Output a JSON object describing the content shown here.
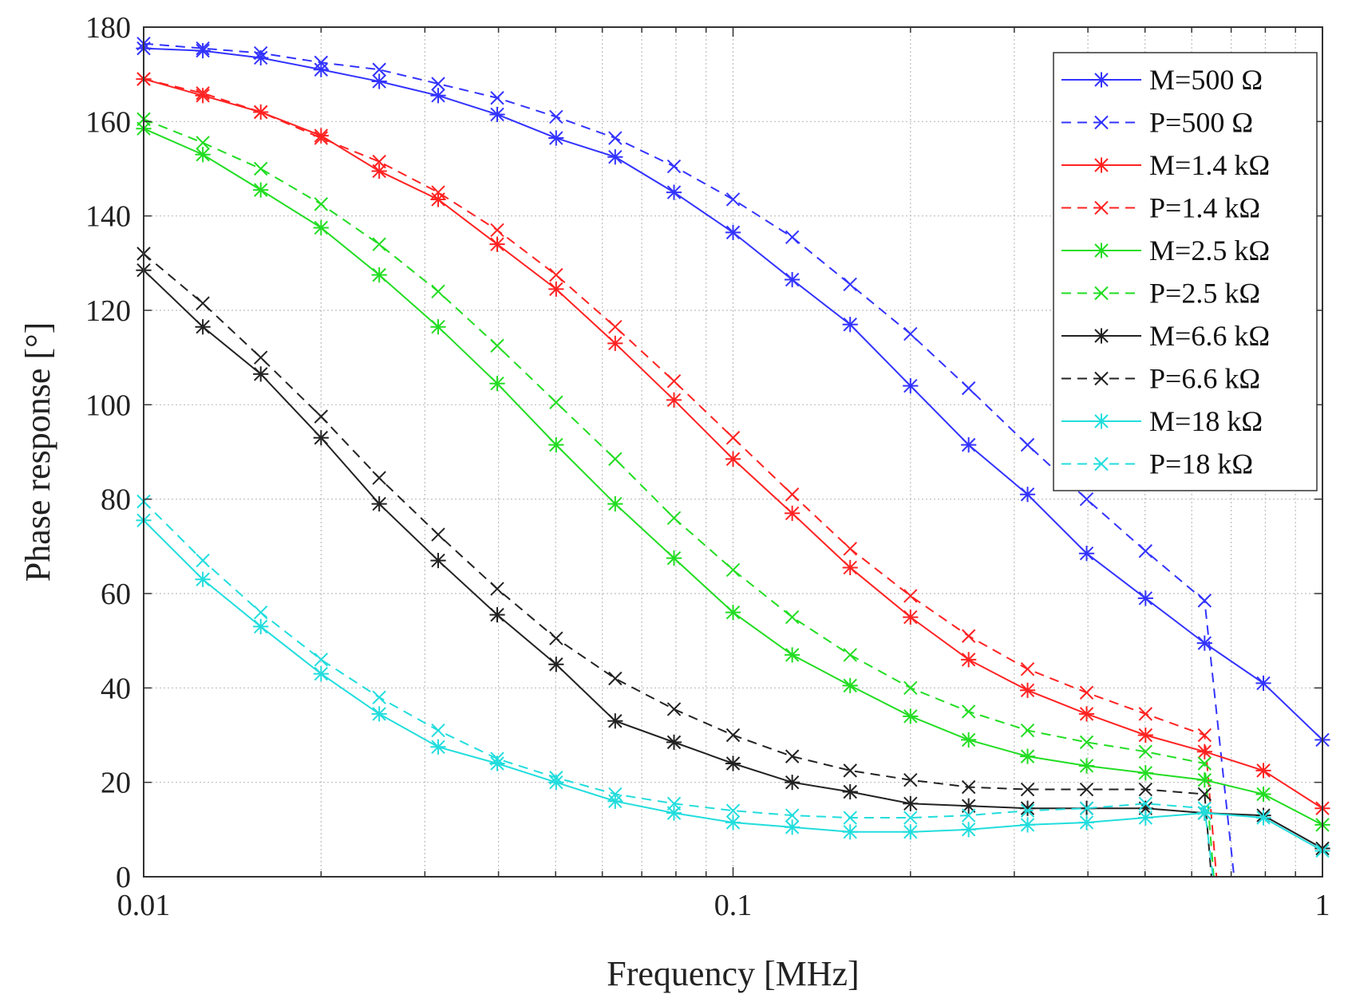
{
  "chart_data": {
    "type": "line",
    "title": "",
    "xlabel": "Frequency [MHz]",
    "ylabel": "Phase response  [°]",
    "xscale": "log",
    "xlim": [
      0.01,
      1
    ],
    "ylim": [
      0,
      180
    ],
    "grid": true,
    "legend_position": "top-right",
    "x_ticks": [
      0.01,
      0.1,
      1
    ],
    "x_tick_labels": [
      "0.01",
      "0.1",
      "1"
    ],
    "y_ticks": [
      0,
      20,
      40,
      60,
      80,
      100,
      120,
      140,
      160,
      180
    ],
    "y_tick_labels": [
      "0",
      "20",
      "40",
      "60",
      "80",
      "100",
      "120",
      "140",
      "160",
      "180"
    ],
    "x": [
      0.01,
      0.0126,
      0.0158,
      0.02,
      0.0251,
      0.0316,
      0.0398,
      0.0501,
      0.0631,
      0.0794,
      0.1,
      0.126,
      0.158,
      0.2,
      0.251,
      0.316,
      0.398,
      0.501,
      0.631,
      0.794,
      1
    ],
    "series": [
      {
        "name": "M=500 Ω",
        "color": "#3333ff",
        "dash": "solid",
        "marker": "star",
        "values": [
          175.5,
          175,
          173.5,
          171,
          168.5,
          165.5,
          161.5,
          156.5,
          152.5,
          145,
          136.5,
          126.5,
          117,
          104,
          91.5,
          81,
          68.5,
          59,
          49.5,
          41,
          29
        ]
      },
      {
        "name": "P=500 Ω",
        "color": "#3333ff",
        "dash": "dashed",
        "marker": "x",
        "values": [
          176.5,
          175.5,
          174.5,
          172.5,
          171,
          168,
          165,
          161,
          156.5,
          150.5,
          143.5,
          135.5,
          125.5,
          115,
          103.5,
          91.5,
          80,
          69,
          58.5,
          null,
          null
        ]
      },
      {
        "name": "M=1.4 kΩ",
        "color": "#ff2222",
        "dash": "solid",
        "marker": "star",
        "values": [
          169,
          165.5,
          162,
          157,
          149.5,
          143.5,
          134,
          124.5,
          113,
          101,
          88.5,
          77,
          65.5,
          55,
          46,
          39.5,
          34.5,
          30,
          26.5,
          22.5,
          14.5
        ]
      },
      {
        "name": "P=1.4 kΩ",
        "color": "#ff2222",
        "dash": "dashed",
        "marker": "x",
        "values": [
          169,
          166,
          162,
          156.5,
          151.5,
          145,
          137,
          127.5,
          116.5,
          105,
          93,
          81,
          69.5,
          59.5,
          51,
          44,
          39,
          34.5,
          30,
          null,
          null
        ]
      },
      {
        "name": "M=2.5 kΩ",
        "color": "#22dd22",
        "dash": "solid",
        "marker": "star",
        "values": [
          158.5,
          153,
          145.5,
          137.5,
          127.5,
          116.5,
          104.5,
          91.5,
          79,
          67.5,
          56,
          47,
          40.5,
          34,
          29,
          25.5,
          23.5,
          22,
          20.5,
          17.5,
          11
        ]
      },
      {
        "name": "P=2.5 kΩ",
        "color": "#22dd22",
        "dash": "dashed",
        "marker": "x",
        "values": [
          160.5,
          155.5,
          150,
          142.5,
          134,
          124,
          112.5,
          100.5,
          88.5,
          76,
          65,
          55,
          47,
          40,
          35,
          31,
          28.5,
          26.5,
          24,
          null,
          null
        ]
      },
      {
        "name": "M=6.6 kΩ",
        "color": "#222222",
        "dash": "solid",
        "marker": "star",
        "values": [
          128.5,
          116.5,
          106.5,
          93,
          79,
          67,
          55.5,
          45,
          33,
          28.5,
          24,
          20,
          18,
          15.5,
          15,
          14.5,
          14.5,
          14.5,
          13.5,
          13,
          6
        ]
      },
      {
        "name": "P=6.6 kΩ",
        "color": "#222222",
        "dash": "dashed",
        "marker": "x",
        "values": [
          132,
          121.5,
          110,
          97.5,
          84.5,
          72.5,
          61,
          50.5,
          42,
          35.5,
          30,
          25.5,
          22.5,
          20.5,
          19,
          18.5,
          18.5,
          18.5,
          17.5,
          null,
          null
        ]
      },
      {
        "name": "M=18 kΩ",
        "color": "#22dddd",
        "dash": "solid",
        "marker": "star",
        "values": [
          75.5,
          63,
          53,
          43,
          34.5,
          27.5,
          24,
          20,
          16,
          13.5,
          11.5,
          10.5,
          9.5,
          9.5,
          10,
          11,
          11.5,
          12.5,
          13.5,
          12.5,
          5.5
        ]
      },
      {
        "name": "P=18 kΩ",
        "color": "#22dddd",
        "dash": "dashed",
        "marker": "x",
        "values": [
          79.5,
          67,
          56,
          46,
          38,
          31,
          25,
          21,
          17.5,
          15.5,
          14,
          13,
          12.5,
          12.5,
          13,
          14,
          14.5,
          15.5,
          14.5,
          null,
          null
        ]
      }
    ],
    "dropoffs": [
      {
        "series": "P=500 Ω",
        "from_x": 0.631,
        "from_y": 58.5,
        "to_x": 0.708,
        "to_y": 0
      },
      {
        "series": "P=1.4 kΩ",
        "from_x": 0.631,
        "from_y": 30,
        "to_x": 0.661,
        "to_y": 0
      },
      {
        "series": "P=2.5 kΩ",
        "from_x": 0.631,
        "from_y": 24,
        "to_x": 0.654,
        "to_y": 0
      },
      {
        "series": "P=6.6 kΩ",
        "from_x": 0.631,
        "from_y": 17.5,
        "to_x": 0.648,
        "to_y": 0
      },
      {
        "series": "P=18 kΩ",
        "from_x": 0.631,
        "from_y": 14.5,
        "to_x": 0.652,
        "to_y": 0
      }
    ]
  }
}
